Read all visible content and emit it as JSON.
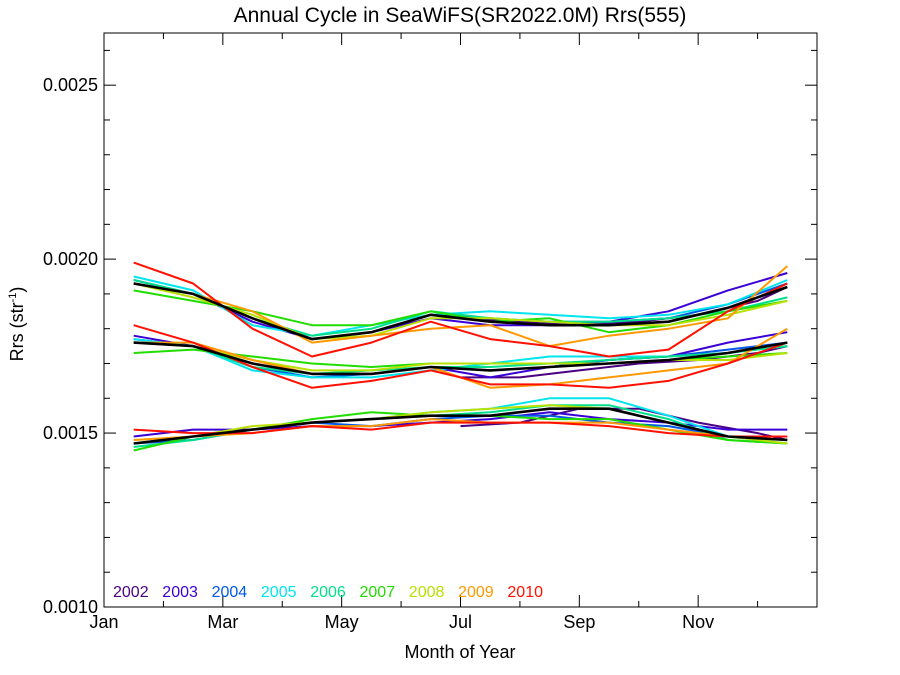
{
  "chart_data": {
    "type": "line",
    "title": "Annual Cycle in SeaWiFS(SR2022.0M) Rrs(555)",
    "xlabel": "Month of Year",
    "ylabel_base": "Rrs (str",
    "ylabel_sup": "-1",
    "ylabel_close": ")",
    "xlim": [
      0,
      12
    ],
    "ylim": [
      0.001,
      0.00265
    ],
    "x_ticks": [
      {
        "value": 0,
        "label": "Jan"
      },
      {
        "value": 2,
        "label": "Mar"
      },
      {
        "value": 4,
        "label": "May"
      },
      {
        "value": 6,
        "label": "Jul"
      },
      {
        "value": 8,
        "label": "Sep"
      },
      {
        "value": 10,
        "label": "Nov"
      }
    ],
    "y_ticks": [
      {
        "value": 0.001,
        "label": "0.0010"
      },
      {
        "value": 0.0015,
        "label": "0.0015"
      },
      {
        "value": 0.002,
        "label": "0.0020"
      },
      {
        "value": 0.0025,
        "label": "0.0025"
      }
    ],
    "y_minor_step": 0.0001,
    "grid": false,
    "legend_position": "bottom-left",
    "series": [
      {
        "name": "2002",
        "color": "#4b0082",
        "groups": [
          {
            "x": [
              6,
              7,
              8,
              9,
              10,
              11,
              11.5
            ],
            "y": [
              0.00183,
              0.00182,
              0.00181,
              0.00182,
              0.00184,
              0.00188,
              0.00192
            ]
          },
          {
            "x": [
              6,
              7,
              8,
              9,
              10,
              11,
              11.5
            ],
            "y": [
              0.00166,
              0.00166,
              0.00168,
              0.0017,
              0.00171,
              0.00173,
              0.00175
            ]
          },
          {
            "x": [
              6,
              7,
              8,
              9,
              10,
              11,
              11.5
            ],
            "y": [
              0.00152,
              0.00153,
              0.00157,
              0.00157,
              0.00153,
              0.0015,
              0.00148
            ]
          }
        ]
      },
      {
        "name": "2003",
        "color": "#3a00d6",
        "groups": [
          {
            "x": [
              0.5,
              1.5,
              2.5,
              3.5,
              4.5,
              5.5,
              6.5,
              7.5,
              8.5,
              9.5,
              10.5,
              11.5
            ],
            "y": [
              0.00194,
              0.0019,
              0.00182,
              0.00177,
              0.00179,
              0.00183,
              0.00181,
              0.00181,
              0.00182,
              0.00185,
              0.00191,
              0.00196
            ]
          },
          {
            "x": [
              0.5,
              1.5,
              2.5,
              3.5,
              4.5,
              5.5,
              6.5,
              7.5,
              8.5,
              9.5,
              10.5,
              11.5
            ],
            "y": [
              0.00178,
              0.00175,
              0.0017,
              0.00167,
              0.00167,
              0.00169,
              0.00166,
              0.00169,
              0.00171,
              0.00172,
              0.00176,
              0.00179
            ]
          },
          {
            "x": [
              0.5,
              1.5,
              2.5,
              3.5,
              4.5,
              5.5,
              6.5,
              7.5,
              8.5,
              9.5,
              10.5,
              11.5
            ],
            "y": [
              0.00149,
              0.00151,
              0.00151,
              0.00152,
              0.00152,
              0.00153,
              0.00154,
              0.00156,
              0.00154,
              0.00153,
              0.00151,
              0.00151
            ]
          }
        ]
      },
      {
        "name": "2004",
        "color": "#0058e6",
        "groups": [
          {
            "x": [
              0.5,
              1.5,
              2.5,
              3.5,
              4.5,
              5.5,
              6.5,
              7.5,
              8.5,
              9.5,
              10.5,
              11.5
            ],
            "y": [
              0.00193,
              0.0019,
              0.00183,
              0.00177,
              0.00179,
              0.00184,
              0.00183,
              0.00182,
              0.00182,
              0.00183,
              0.00187,
              0.00193
            ]
          },
          {
            "x": [
              0.5,
              1.5,
              2.5,
              3.5,
              4.5,
              5.5,
              6.5,
              7.5,
              8.5,
              9.5,
              10.5,
              11.5
            ],
            "y": [
              0.00177,
              0.00175,
              0.00169,
              0.00166,
              0.00167,
              0.00169,
              0.00168,
              0.00169,
              0.00171,
              0.00172,
              0.00174,
              0.00176
            ]
          },
          {
            "x": [
              0.5,
              1.5,
              2.5,
              3.5,
              4.5,
              5.5,
              6.5,
              7.5,
              8.5,
              9.5,
              10.5,
              11.5
            ],
            "y": [
              0.00147,
              0.00148,
              0.00151,
              0.00153,
              0.00152,
              0.00154,
              0.00155,
              0.00155,
              0.00153,
              0.00152,
              0.00149,
              0.00148
            ]
          }
        ]
      },
      {
        "name": "2005",
        "color": "#00e5ee",
        "groups": [
          {
            "x": [
              0.5,
              1.5,
              2.5,
              3.5,
              4.5,
              5.5,
              6.5,
              7.5,
              8.5,
              9.5,
              10.5,
              11.5
            ],
            "y": [
              0.00195,
              0.00191,
              0.00181,
              0.00178,
              0.00181,
              0.00184,
              0.00185,
              0.00184,
              0.00183,
              0.00184,
              0.00187,
              0.00194
            ]
          },
          {
            "x": [
              0.5,
              1.5,
              2.5,
              3.5,
              4.5,
              5.5,
              6.5,
              7.5,
              8.5,
              9.5,
              10.5,
              11.5
            ],
            "y": [
              0.00177,
              0.00175,
              0.00168,
              0.00166,
              0.00166,
              0.00168,
              0.0017,
              0.00172,
              0.00172,
              0.00172,
              0.00173,
              0.00175
            ]
          },
          {
            "x": [
              0.5,
              1.5,
              2.5,
              3.5,
              4.5,
              5.5,
              6.5,
              7.5,
              8.5,
              9.5,
              10.5,
              11.5
            ],
            "y": [
              0.00147,
              0.00149,
              0.00151,
              0.00153,
              0.00154,
              0.00156,
              0.00157,
              0.0016,
              0.0016,
              0.00155,
              0.00149,
              0.00147
            ]
          }
        ]
      },
      {
        "name": "2006",
        "color": "#00e08a",
        "groups": [
          {
            "x": [
              0.5,
              1.5,
              2.5,
              3.5,
              4.5,
              5.5,
              6.5,
              7.5,
              8.5,
              9.5,
              10.5,
              11.5
            ],
            "y": [
              0.00194,
              0.0019,
              0.00183,
              0.00178,
              0.0018,
              0.00185,
              0.00183,
              0.00182,
              0.00182,
              0.00183,
              0.00185,
              0.00189
            ]
          },
          {
            "x": [
              0.5,
              1.5,
              2.5,
              3.5,
              4.5,
              5.5,
              6.5,
              7.5,
              8.5,
              9.5,
              10.5,
              11.5
            ],
            "y": [
              0.00176,
              0.00175,
              0.00169,
              0.00167,
              0.00168,
              0.00169,
              0.00169,
              0.0017,
              0.00171,
              0.00172,
              0.00173,
              0.00175
            ]
          },
          {
            "x": [
              0.5,
              1.5,
              2.5,
              3.5,
              4.5,
              5.5,
              6.5,
              7.5,
              8.5,
              9.5,
              10.5,
              11.5
            ],
            "y": [
              0.00146,
              0.00148,
              0.00151,
              0.00153,
              0.00154,
              0.00155,
              0.00156,
              0.00158,
              0.00158,
              0.00154,
              0.00148,
              0.00147
            ]
          }
        ]
      },
      {
        "name": "2007",
        "color": "#22dd00",
        "groups": [
          {
            "x": [
              0.5,
              1.5,
              2.5,
              3.5,
              4.5,
              5.5,
              6.5,
              7.5,
              8.5,
              9.5,
              10.5,
              11.5
            ],
            "y": [
              0.00191,
              0.00188,
              0.00185,
              0.00181,
              0.00181,
              0.00185,
              0.00182,
              0.00183,
              0.00179,
              0.00181,
              0.00185,
              0.00188
            ]
          },
          {
            "x": [
              0.5,
              1.5,
              2.5,
              3.5,
              4.5,
              5.5,
              6.5,
              7.5,
              8.5,
              9.5,
              10.5,
              11.5
            ],
            "y": [
              0.00173,
              0.00174,
              0.00172,
              0.0017,
              0.00169,
              0.0017,
              0.0017,
              0.0017,
              0.0017,
              0.00171,
              0.00172,
              0.00173
            ]
          },
          {
            "x": [
              0.5,
              1.5,
              2.5,
              3.5,
              4.5,
              5.5,
              6.5,
              7.5,
              8.5,
              9.5,
              10.5,
              11.5
            ],
            "y": [
              0.00145,
              0.00149,
              0.00151,
              0.00154,
              0.00156,
              0.00155,
              0.00155,
              0.00154,
              0.00154,
              0.00151,
              0.00148,
              0.00147
            ]
          }
        ]
      },
      {
        "name": "2008",
        "color": "#b8e000",
        "groups": [
          {
            "x": [
              0.5,
              1.5,
              2.5,
              3.5,
              4.5,
              5.5,
              6.5,
              7.5,
              8.5,
              9.5,
              10.5,
              11.5
            ],
            "y": [
              0.00193,
              0.00189,
              0.00184,
              0.00177,
              0.00178,
              0.00183,
              0.00183,
              0.00182,
              0.00181,
              0.00181,
              0.00184,
              0.00188
            ]
          },
          {
            "x": [
              0.5,
              1.5,
              2.5,
              3.5,
              4.5,
              5.5,
              6.5,
              7.5,
              8.5,
              9.5,
              10.5,
              11.5
            ],
            "y": [
              0.00176,
              0.00175,
              0.00171,
              0.00168,
              0.00168,
              0.0017,
              0.0017,
              0.0017,
              0.0017,
              0.00171,
              0.00171,
              0.00173
            ]
          },
          {
            "x": [
              0.5,
              1.5,
              2.5,
              3.5,
              4.5,
              5.5,
              6.5,
              7.5,
              8.5,
              9.5,
              10.5,
              11.5
            ],
            "y": [
              0.00147,
              0.00149,
              0.00152,
              0.00153,
              0.00154,
              0.00156,
              0.00157,
              0.00158,
              0.00157,
              0.00153,
              0.00149,
              0.00147
            ]
          }
        ]
      },
      {
        "name": "2009",
        "color": "#ff9900",
        "groups": [
          {
            "x": [
              0.5,
              1.5,
              2.5,
              3.5,
              4.5,
              5.5,
              6.5,
              7.5,
              8.5,
              9.5,
              10.5,
              11.5
            ],
            "y": [
              0.00193,
              0.0019,
              0.00185,
              0.00176,
              0.00178,
              0.0018,
              0.00181,
              0.00175,
              0.00178,
              0.0018,
              0.00183,
              0.00198
            ]
          },
          {
            "x": [
              0.5,
              1.5,
              2.5,
              3.5,
              4.5,
              5.5,
              6.5,
              7.5,
              8.5,
              9.5,
              10.5,
              11.5
            ],
            "y": [
              0.00176,
              0.00176,
              0.00171,
              0.00167,
              0.00167,
              0.00169,
              0.00163,
              0.00164,
              0.00166,
              0.00168,
              0.0017,
              0.0018
            ]
          },
          {
            "x": [
              0.5,
              1.5,
              2.5,
              3.5,
              4.5,
              5.5,
              6.5,
              7.5,
              8.5,
              9.5,
              10.5,
              11.5
            ],
            "y": [
              0.00148,
              0.00149,
              0.0015,
              0.00152,
              0.00152,
              0.00154,
              0.00153,
              0.00153,
              0.00153,
              0.00151,
              0.00149,
              0.00148
            ]
          }
        ]
      },
      {
        "name": "2010",
        "color": "#ff1000",
        "groups": [
          {
            "x": [
              0.5,
              1.5,
              2.5,
              3.5,
              4.5,
              5.5,
              6.5,
              7.5,
              8.5,
              9.5,
              10.5,
              11.5
            ],
            "y": [
              0.00199,
              0.00193,
              0.0018,
              0.00172,
              0.00176,
              0.00182,
              0.00177,
              0.00175,
              0.00172,
              0.00174,
              0.00185,
              0.00193
            ]
          },
          {
            "x": [
              0.5,
              1.5,
              2.5,
              3.5,
              4.5,
              5.5,
              6.5,
              7.5,
              8.5,
              9.5,
              10.5,
              11.5
            ],
            "y": [
              0.00181,
              0.00176,
              0.00169,
              0.00163,
              0.00165,
              0.00168,
              0.00164,
              0.00164,
              0.00163,
              0.00165,
              0.0017,
              0.00176
            ]
          },
          {
            "x": [
              0.5,
              1.5,
              2.5,
              3.5,
              4.5,
              5.5,
              6.5,
              7.5,
              8.5,
              9.5,
              10.5,
              11.5
            ],
            "y": [
              0.00151,
              0.0015,
              0.0015,
              0.00152,
              0.00151,
              0.00153,
              0.00153,
              0.00153,
              0.00152,
              0.0015,
              0.00149,
              0.00149
            ]
          }
        ]
      },
      {
        "color": "#000000",
        "width": 2.6,
        "groups": [
          {
            "x": [
              0.5,
              1.5,
              2.5,
              3.5,
              4.5,
              5.5,
              6.5,
              7.5,
              8.5,
              9.5,
              10.5,
              11.5
            ],
            "y": [
              0.00193,
              0.0019,
              0.00183,
              0.00177,
              0.00179,
              0.00184,
              0.00182,
              0.00181,
              0.00181,
              0.00182,
              0.00186,
              0.00192
            ]
          },
          {
            "x": [
              0.5,
              1.5,
              2.5,
              3.5,
              4.5,
              5.5,
              6.5,
              7.5,
              8.5,
              9.5,
              10.5,
              11.5
            ],
            "y": [
              0.00176,
              0.00175,
              0.0017,
              0.00167,
              0.00167,
              0.00169,
              0.00168,
              0.00169,
              0.0017,
              0.00171,
              0.00173,
              0.00176
            ]
          },
          {
            "x": [
              0.5,
              1.5,
              2.5,
              3.5,
              4.5,
              5.5,
              6.5,
              7.5,
              8.5,
              9.5,
              10.5,
              11.5
            ],
            "y": [
              0.00147,
              0.00149,
              0.00151,
              0.00153,
              0.00154,
              0.00155,
              0.00155,
              0.00157,
              0.00157,
              0.00153,
              0.00149,
              0.00148
            ]
          }
        ]
      }
    ]
  }
}
